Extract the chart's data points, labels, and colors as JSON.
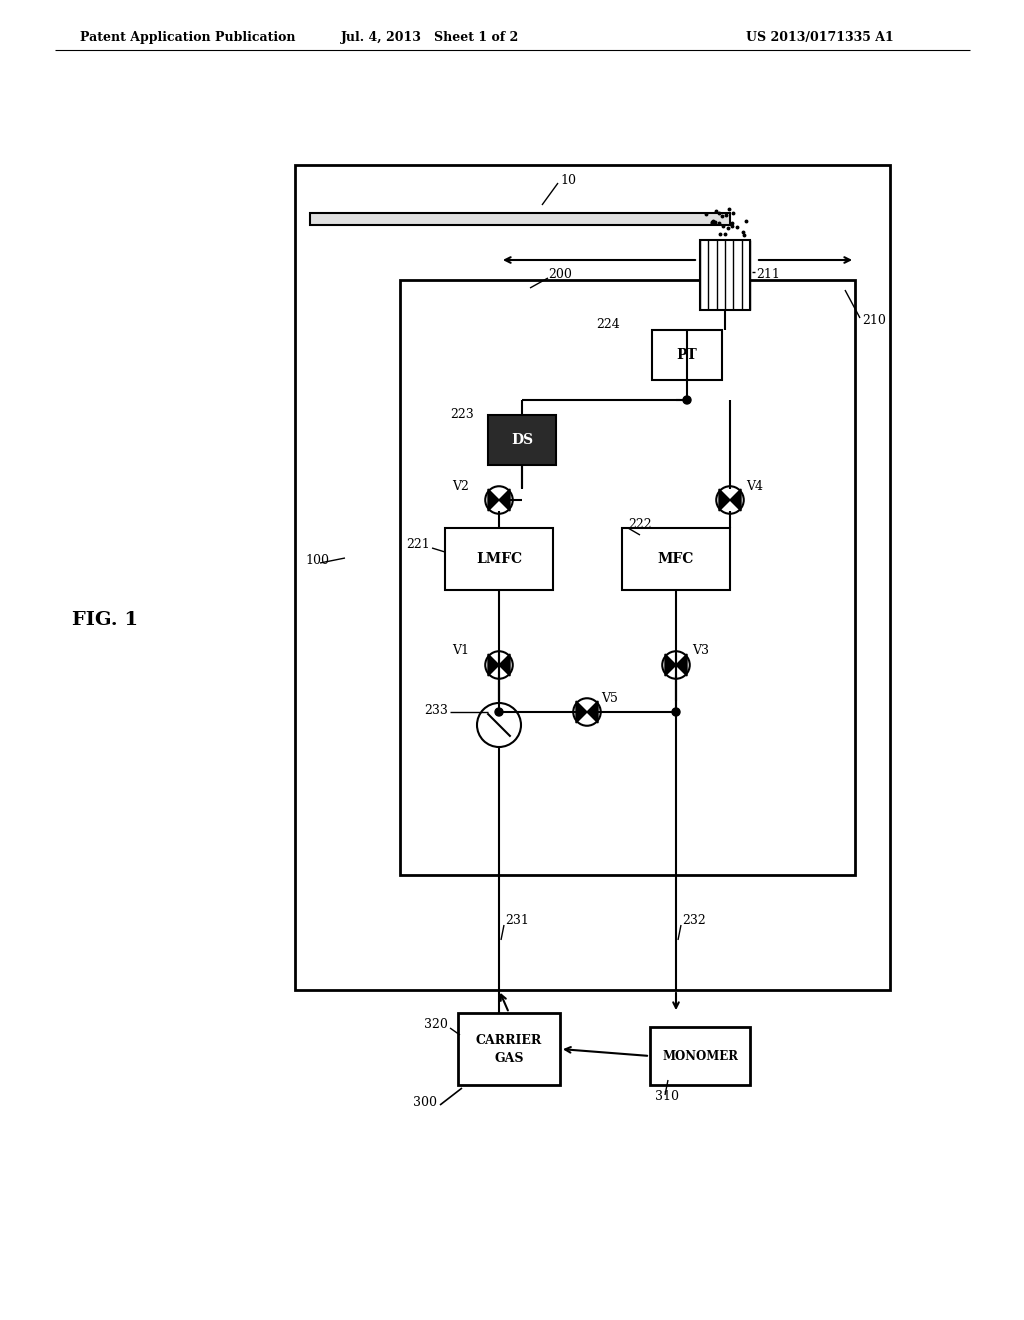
{
  "header_left": "Patent Application Publication",
  "header_mid": "Jul. 4, 2013   Sheet 1 of 2",
  "header_right": "US 2013/0171335 A1",
  "fig_label": "FIG. 1",
  "bg_color": "#ffffff",
  "line_color": "#000000"
}
